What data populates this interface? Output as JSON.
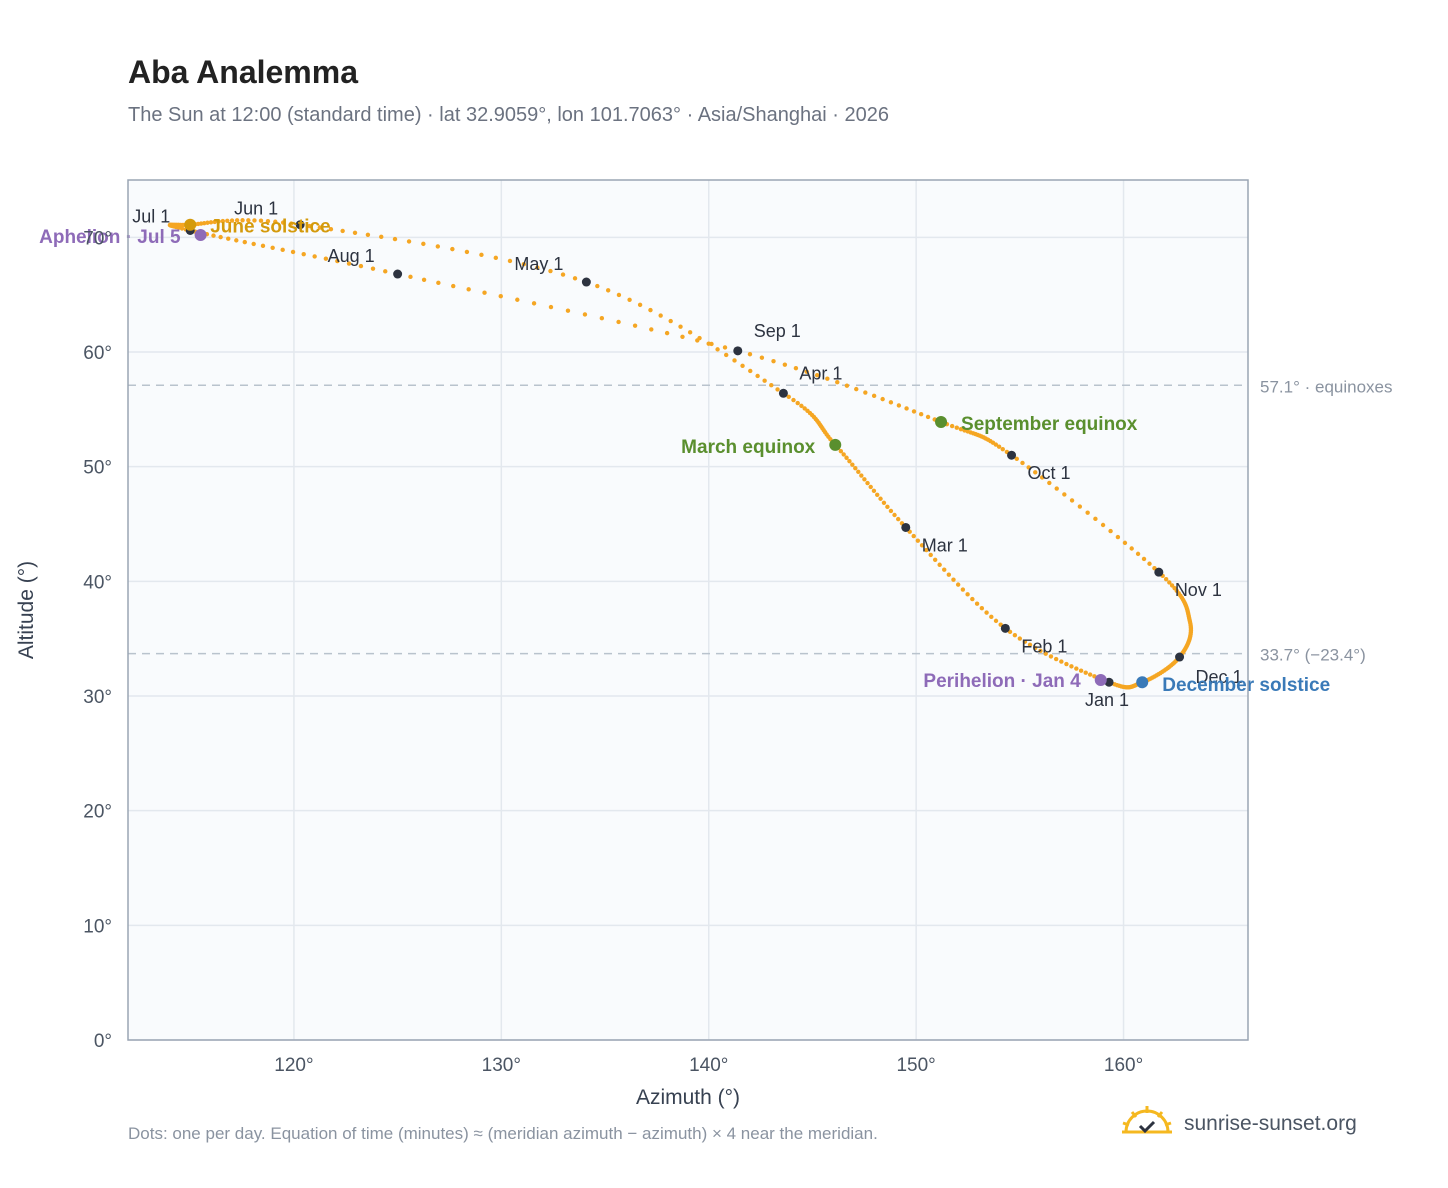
{
  "title": "Aba Analemma",
  "subtitle": "The Sun at 12:00 (standard time) · lat 32.9059°, lon 101.7063° · Asia/Shanghai · 2026",
  "footnote": "Dots: one per day. Equation of time (minutes) ≈ (meridian azimuth − azimuth) × 4 near the meridian.",
  "brand": "sunrise-sunset.org",
  "colors": {
    "curve": "#f5a623",
    "month_dot": "#2d3340",
    "equinox": "#5a8f2e",
    "june_solstice": "#d49a0c",
    "december_solstice": "#3a7ab8",
    "apsis": "#8e6bb8",
    "grid": "#e3e8ee",
    "plot_bg": "#f9fbfd",
    "frame": "#9aa5b4",
    "reference_line": "#b9c3cd"
  },
  "chart_data": {
    "type": "scatter",
    "xlabel": "Azimuth (°)",
    "ylabel": "Altitude (°)",
    "xlim": [
      112,
      166
    ],
    "ylim": [
      0,
      75
    ],
    "x_ticks": [
      120,
      130,
      140,
      150,
      160
    ],
    "x_tick_labels": [
      "120°",
      "130°",
      "140°",
      "150°",
      "160°"
    ],
    "y_ticks": [
      0,
      10,
      20,
      30,
      40,
      50,
      60,
      70
    ],
    "y_tick_labels": [
      "0°",
      "10°",
      "20°",
      "30°",
      "40°",
      "50°",
      "60°",
      "70°"
    ],
    "grid": true,
    "reference_lines": [
      {
        "y": 57.1,
        "label": "57.1° · equinoxes"
      },
      {
        "y": 33.7,
        "label": "33.7° (−23.4°)"
      }
    ],
    "month_markers": [
      {
        "label": "Jan 1",
        "azimuth": 159.3,
        "altitude": 31.2
      },
      {
        "label": "Feb 1",
        "azimuth": 154.3,
        "altitude": 35.9
      },
      {
        "label": "Mar 1",
        "azimuth": 149.5,
        "altitude": 44.7
      },
      {
        "label": "Apr 1",
        "azimuth": 143.6,
        "altitude": 56.4
      },
      {
        "label": "May 1",
        "azimuth": 134.1,
        "altitude": 66.1
      },
      {
        "label": "Jun 1",
        "azimuth": 120.3,
        "altitude": 71.1
      },
      {
        "label": "Jul 1",
        "azimuth": 115.0,
        "altitude": 70.6
      },
      {
        "label": "Aug 1",
        "azimuth": 125.0,
        "altitude": 66.8
      },
      {
        "label": "Sep 1",
        "azimuth": 141.4,
        "altitude": 60.1
      },
      {
        "label": "Oct 1",
        "azimuth": 154.6,
        "altitude": 51.0
      },
      {
        "label": "Nov 1",
        "azimuth": 161.7,
        "altitude": 40.8
      },
      {
        "label": "Dec 1",
        "azimuth": 162.7,
        "altitude": 33.4
      }
    ],
    "events": [
      {
        "label": "March equinox",
        "azimuth": 146.1,
        "altitude": 51.9,
        "kind": "equinox"
      },
      {
        "label": "September equinox",
        "azimuth": 151.2,
        "altitude": 53.9,
        "kind": "equinox"
      },
      {
        "label": "June solstice",
        "azimuth": 115.0,
        "altitude": 71.1,
        "kind": "june_solstice"
      },
      {
        "label": "December solstice",
        "azimuth": 160.9,
        "altitude": 31.2,
        "kind": "december_solstice"
      },
      {
        "label": "Perihelion · Jan 4",
        "azimuth": 158.9,
        "altitude": 31.4,
        "kind": "apsis"
      },
      {
        "label": "Aphelion · Jul 5",
        "azimuth": 115.5,
        "altitude": 70.2,
        "kind": "apsis"
      }
    ]
  }
}
